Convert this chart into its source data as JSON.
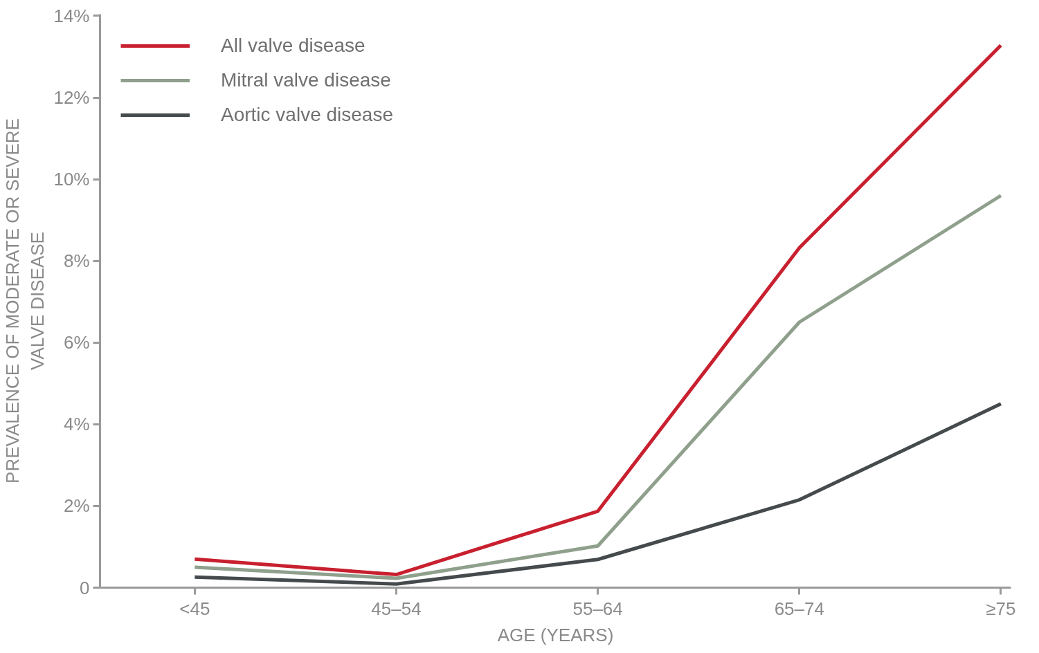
{
  "chart_data": {
    "type": "line",
    "xlabel": "AGE (YEARS)",
    "ylabel": "PREVALENCE OF MODERATE OR SEVERE\nVALVE DISEASE",
    "categories": [
      "<45",
      "45–54",
      "55–64",
      "65–74",
      "≥75"
    ],
    "series": [
      {
        "name": "All valve disease",
        "color": "#c8202f",
        "values": [
          0.7,
          0.32,
          1.87,
          8.32,
          13.28
        ]
      },
      {
        "name": "Mitral valve disease",
        "color": "#8fa08c",
        "values": [
          0.5,
          0.23,
          1.02,
          6.5,
          9.6
        ]
      },
      {
        "name": "Aortic valve disease",
        "color": "#454a4c",
        "values": [
          0.26,
          0.09,
          0.69,
          2.15,
          4.5
        ]
      }
    ],
    "ylim": [
      0,
      14
    ],
    "yticks": [
      {
        "value": 0,
        "label": "0"
      },
      {
        "value": 2,
        "label": "2%"
      },
      {
        "value": 4,
        "label": "4%"
      },
      {
        "value": 6,
        "label": "6%"
      },
      {
        "value": 8,
        "label": "8%"
      },
      {
        "value": 10,
        "label": "10%"
      },
      {
        "value": 12,
        "label": "12%"
      },
      {
        "value": 14,
        "label": "14%"
      }
    ],
    "grid": false,
    "legend": "top left",
    "marker": "none",
    "line_style": "solid"
  }
}
